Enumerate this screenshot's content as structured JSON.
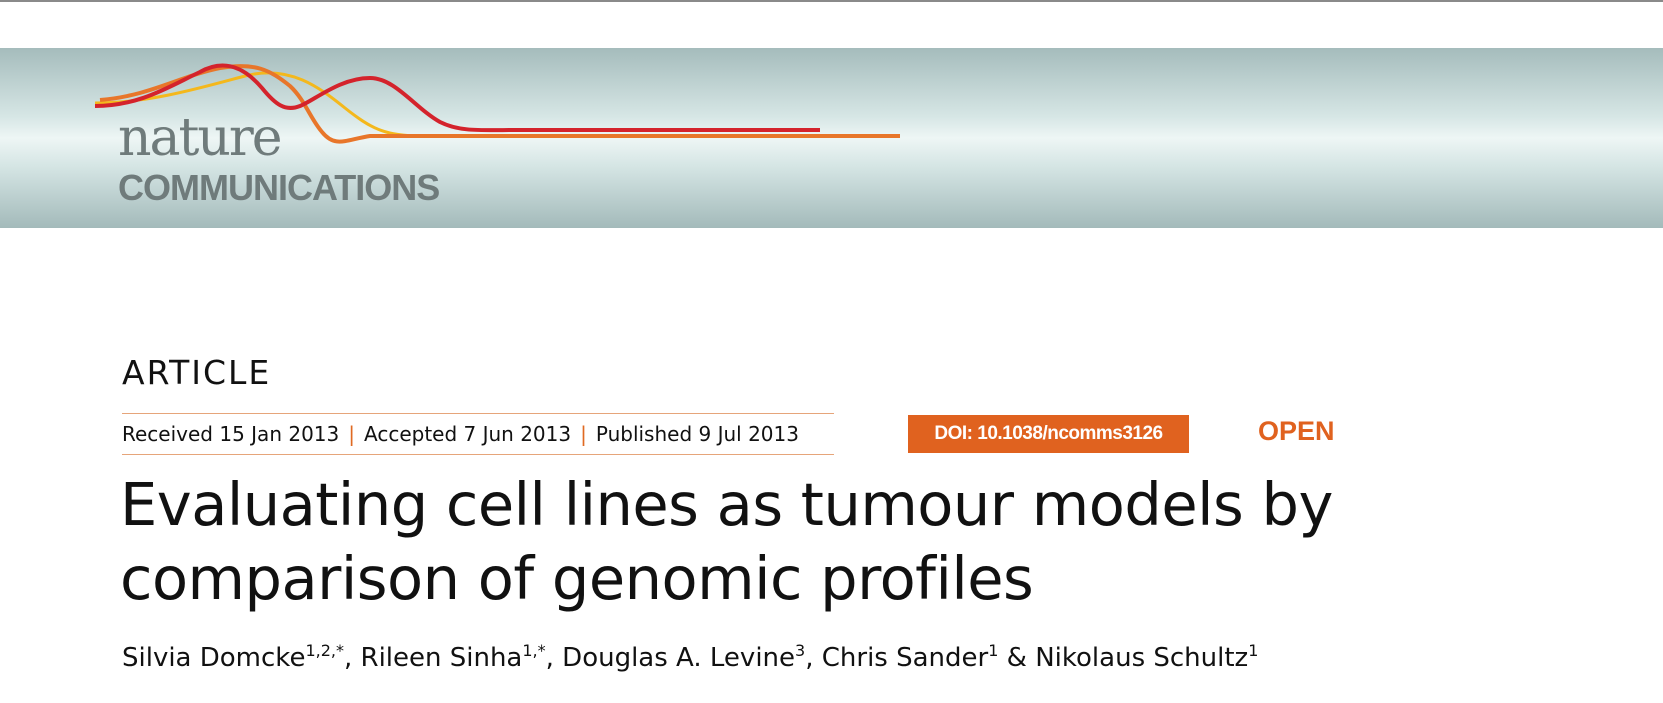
{
  "journal": {
    "logo_word": "nature",
    "logo_sub": "COMMUNICATIONS",
    "brand_colors": {
      "red": "#d4232c",
      "orange": "#e8762a",
      "yellow": "#f4b81c",
      "logo_text": "#6f7b7b"
    }
  },
  "article": {
    "type_label": "ARTICLE",
    "dates": {
      "received": "Received 15 Jan 2013",
      "accepted": "Accepted 7 Jun 2013",
      "published": "Published 9 Jul 2013",
      "separator": "|"
    },
    "doi": "DOI: 10.1038/ncomms3126",
    "access": "OPEN",
    "title_line1": "Evaluating cell lines as tumour models by",
    "title_line2": "comparison of genomic profiles",
    "authors": [
      {
        "name": "Silvia Domcke",
        "affil": "1,2,*",
        "sep": ", "
      },
      {
        "name": "Rileen Sinha",
        "affil": "1,*",
        "sep": ", "
      },
      {
        "name": "Douglas A. Levine",
        "affil": "3",
        "sep": ", "
      },
      {
        "name": "Chris Sander",
        "affil": "1",
        "sep": " & "
      },
      {
        "name": "Nikolaus Schultz",
        "affil": "1",
        "sep": ""
      }
    ],
    "accent_color": "#e0621f"
  }
}
